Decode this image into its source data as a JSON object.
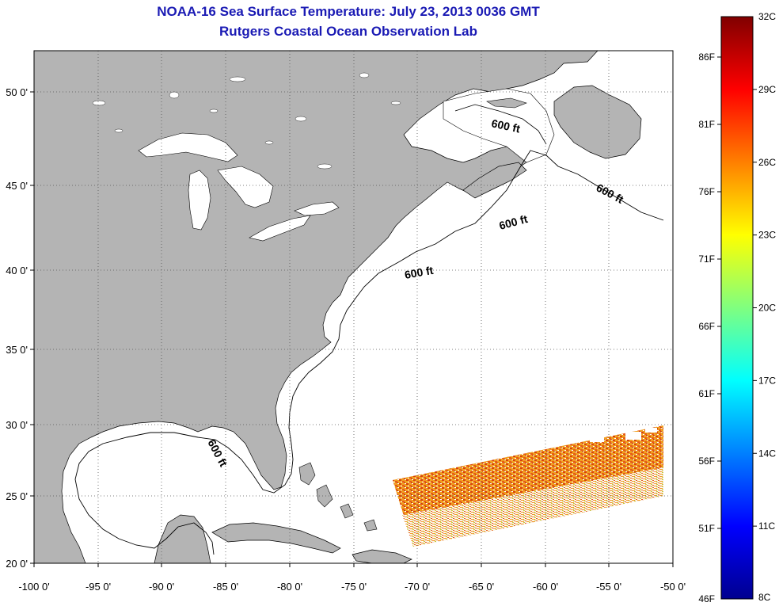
{
  "title_line1": "NOAA-16 Sea Surface Temperature:  July 23, 2013 0036 GMT",
  "title_line2": "Rutgers Coastal Ocean Observation Lab",
  "map": {
    "lon_labels": [
      "-100 0'",
      "-95 0'",
      "-90 0'",
      "-85 0'",
      "-80 0'",
      "-75 0'",
      "-70 0'",
      "-65 0'",
      "-60 0'",
      "-55 0'",
      "-50 0'"
    ],
    "lat_labels": [
      "50 0'",
      "45 0'",
      "40 0'",
      "35 0'",
      "30 0'",
      "25 0'",
      "20 0'"
    ],
    "isobath_labels": [
      "600 ft",
      "600 ft",
      "600 ft",
      "600 ft",
      "600 ft"
    ]
  },
  "colorbar": {
    "fahrenheit_labels": [
      "86F",
      "81F",
      "76F",
      "71F",
      "66F",
      "61F",
      "56F",
      "51F",
      "46F"
    ],
    "celsius_labels": [
      "32C",
      "29C",
      "26C",
      "23C",
      "20C",
      "17C",
      "14C",
      "11C",
      "8C"
    ],
    "range_c": [
      8,
      32
    ],
    "range_f": [
      46,
      90
    ]
  },
  "colors": {
    "title": "#1a1ab4",
    "land": "#b4b4b4",
    "grid": "#555555"
  }
}
